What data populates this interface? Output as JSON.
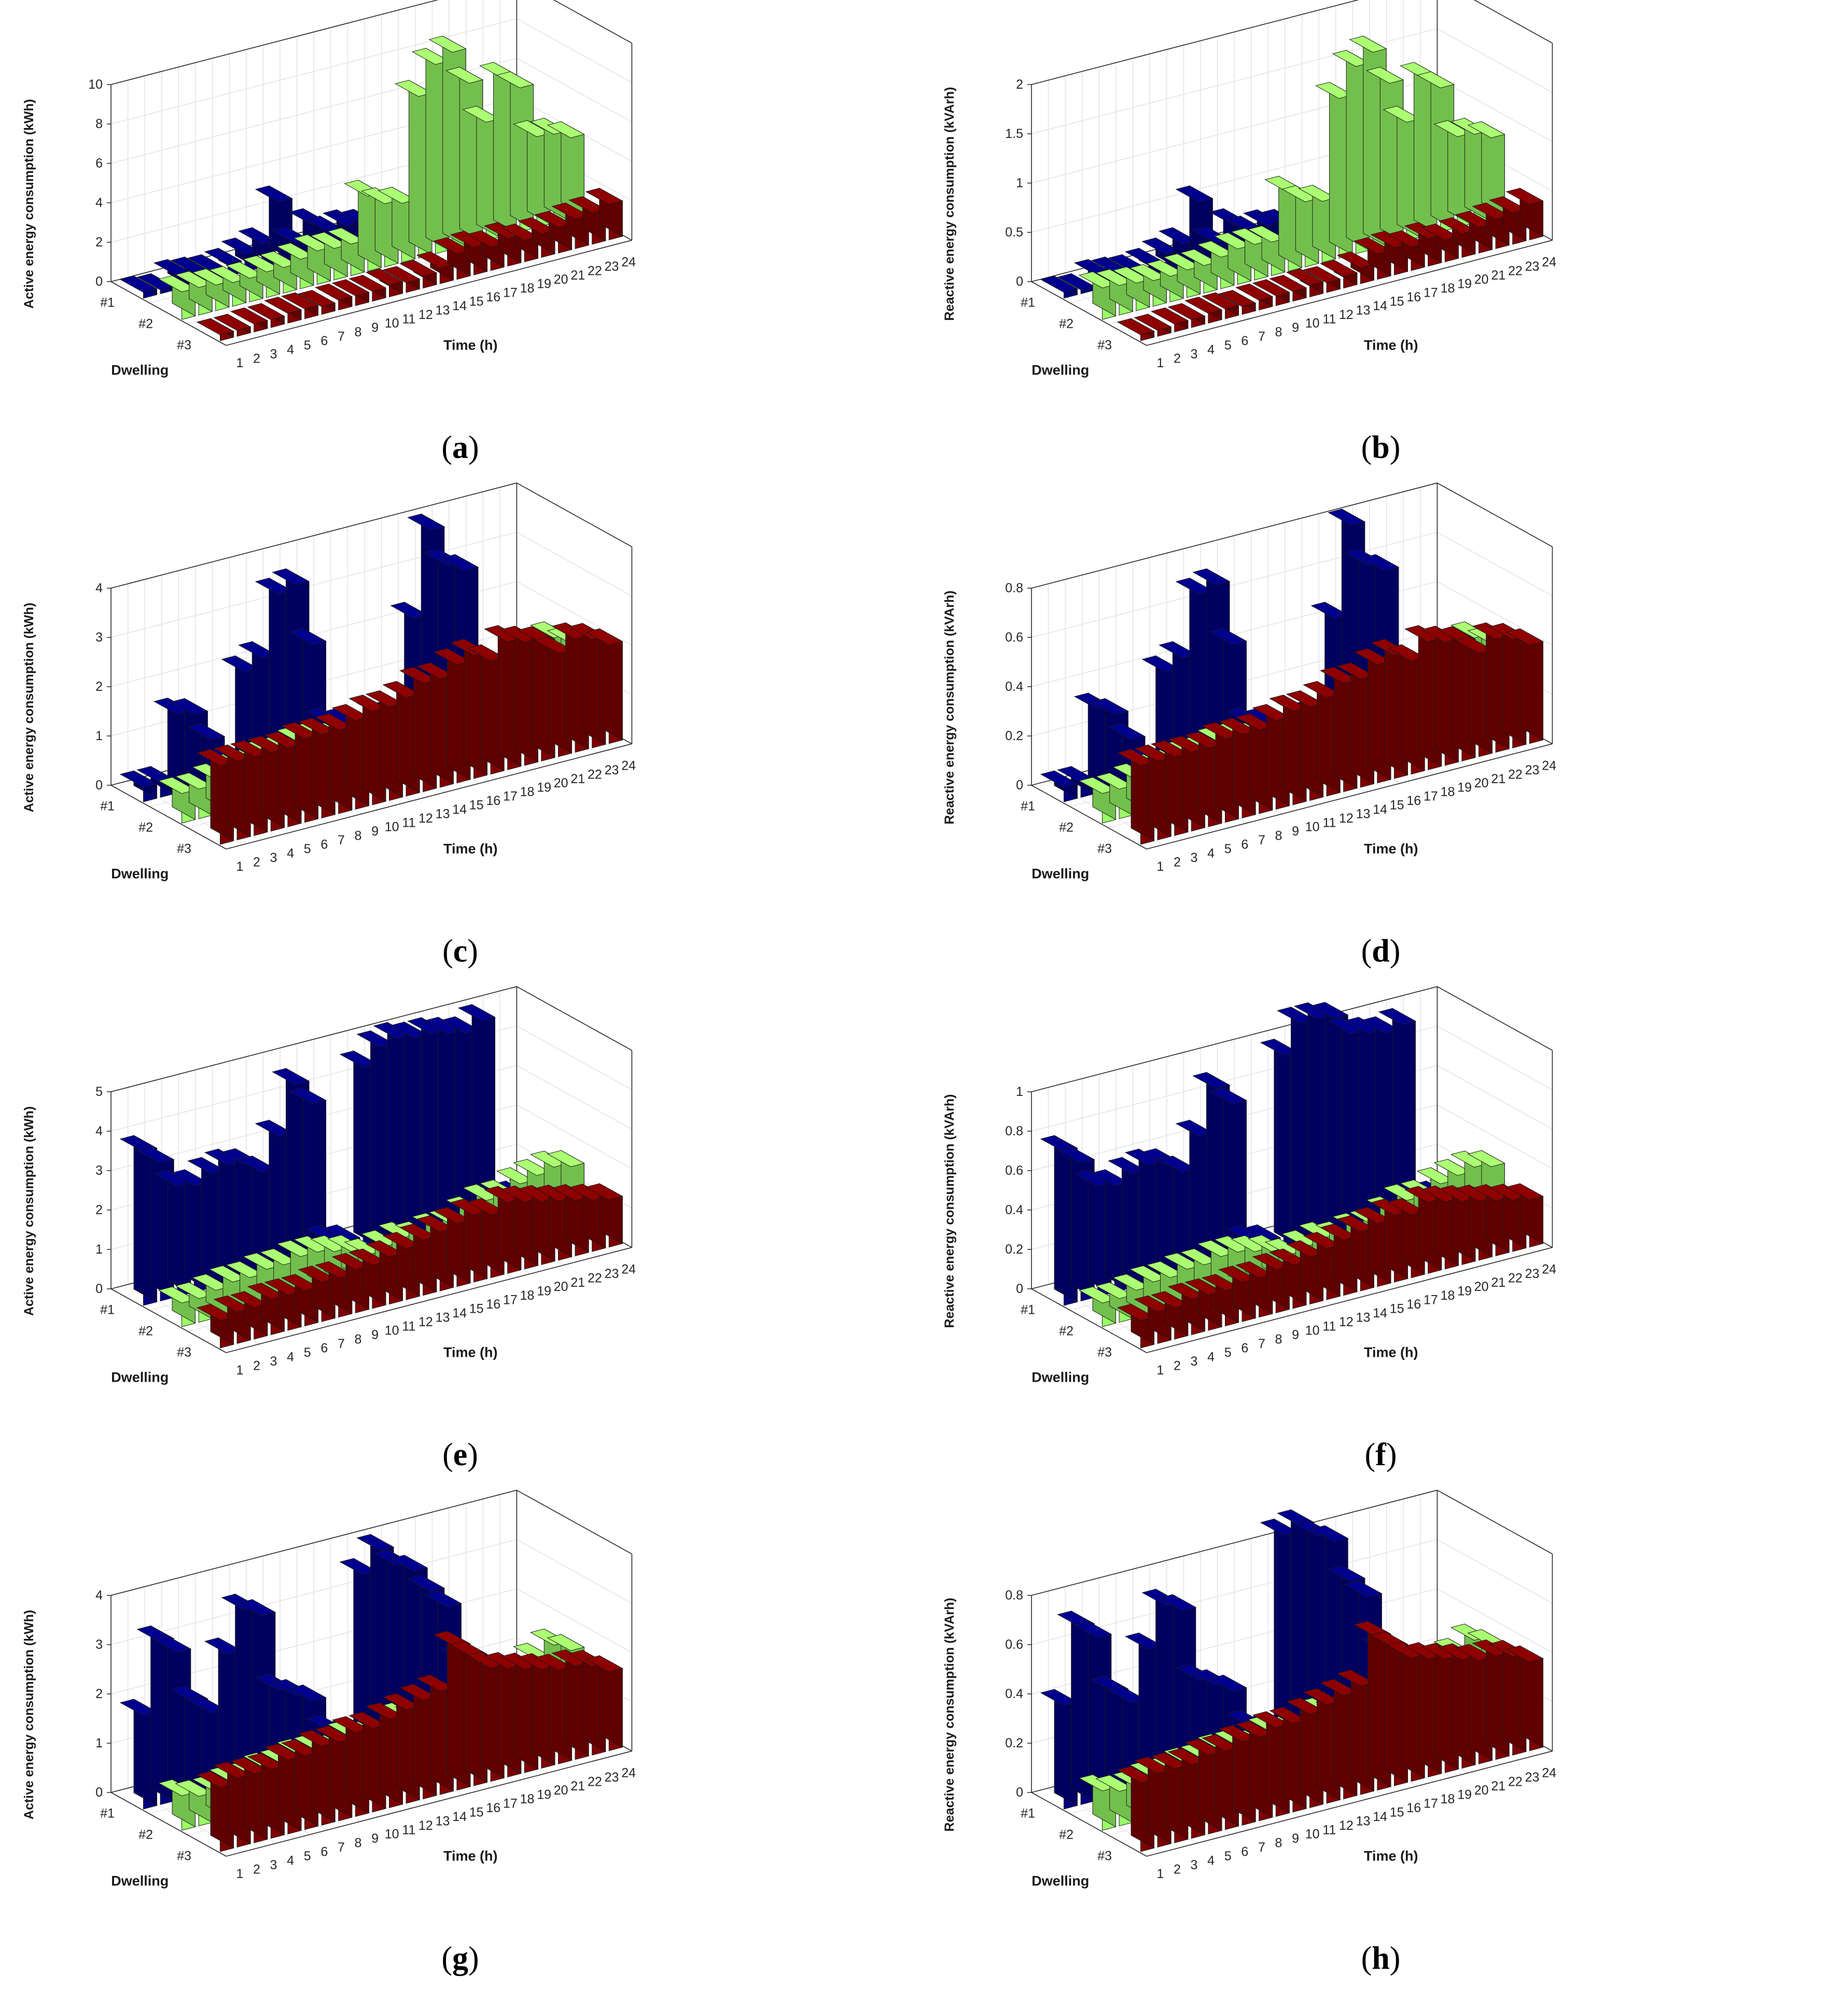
{
  "figure": {
    "colors": {
      "dwelling1": "#000080",
      "dwelling2": "#99FF66",
      "dwelling3": "#800000",
      "edge": "#1a1a1a"
    },
    "common": {
      "xlabel": "Time (h)",
      "ylabel": "Dwelling",
      "dwellings": [
        "#1",
        "#2",
        "#3"
      ],
      "hours": [
        "1",
        "2",
        "3",
        "4",
        "5",
        "6",
        "7",
        "8",
        "9",
        "10",
        "11",
        "12",
        "13",
        "14",
        "15",
        "16",
        "17",
        "18",
        "19",
        "20",
        "21",
        "22",
        "23",
        "24"
      ]
    }
  },
  "chart_data": [
    {
      "id": "a",
      "caption": "a",
      "type": "bar3",
      "zlabel": "Active energy consumption (kWh)",
      "zlim": [
        0,
        10
      ],
      "zticks": [
        "0",
        "2",
        "4",
        "6",
        "8",
        "10"
      ],
      "zstep": 2,
      "series": [
        {
          "name": "#1",
          "values": [
            0.3,
            0.2,
            0.7,
            0.6,
            0.5,
            0.6,
            0.9,
            1.2,
            3.1,
            0.8,
            1.5,
            0.9,
            1.0,
            0.8,
            0.5,
            0.5,
            0.6,
            0.7,
            0.5,
            0.4,
            0.5,
            0.4,
            0.3,
            0.3
          ]
        },
        {
          "name": "#2",
          "values": [
            1.4,
            1.4,
            1.3,
            1.2,
            1.2,
            1.3,
            1.3,
            1.5,
            1.7,
            1.6,
            1.6,
            3.8,
            3.2,
            3.0,
            8.2,
            9.6,
            10.0,
            8.2,
            6.0,
            8.0,
            7.3,
            4.6,
            4.5,
            4.1
          ]
        },
        {
          "name": "#3",
          "values": [
            0.3,
            0.3,
            0.4,
            0.4,
            0.5,
            0.5,
            0.4,
            0.5,
            0.5,
            0.5,
            0.6,
            0.5,
            0.6,
            0.8,
            1.3,
            1.4,
            1.2,
            1.4,
            1.1,
            1.2,
            1.3,
            1.5,
            1.6,
            1.8
          ]
        }
      ]
    },
    {
      "id": "b",
      "caption": "b",
      "type": "bar3",
      "zlabel": "Reactive energy consumption (kVArh)",
      "zlim": [
        0,
        2
      ],
      "zticks": [
        "0",
        "0.5",
        "1",
        "1.5",
        "2"
      ],
      "zstep": 0.5,
      "series": [
        {
          "name": "#1",
          "values": [
            0.06,
            0.04,
            0.14,
            0.12,
            0.1,
            0.12,
            0.18,
            0.24,
            0.62,
            0.16,
            0.3,
            0.18,
            0.2,
            0.16,
            0.1,
            0.1,
            0.12,
            0.14,
            0.1,
            0.08,
            0.1,
            0.08,
            0.06,
            0.06
          ]
        },
        {
          "name": "#2",
          "values": [
            0.32,
            0.3,
            0.28,
            0.26,
            0.26,
            0.28,
            0.28,
            0.32,
            0.36,
            0.36,
            0.34,
            0.8,
            0.66,
            0.62,
            1.62,
            1.9,
            2.0,
            1.64,
            1.2,
            1.6,
            1.46,
            0.92,
            0.9,
            0.82
          ]
        },
        {
          "name": "#3",
          "values": [
            0.06,
            0.06,
            0.08,
            0.08,
            0.1,
            0.1,
            0.08,
            0.1,
            0.1,
            0.1,
            0.12,
            0.1,
            0.12,
            0.16,
            0.26,
            0.28,
            0.24,
            0.28,
            0.22,
            0.24,
            0.26,
            0.3,
            0.32,
            0.36
          ]
        }
      ]
    },
    {
      "id": "c",
      "caption": "c",
      "type": "bar3",
      "zlabel": "Active energy consumption (kWh)",
      "zlim": [
        0,
        4
      ],
      "zticks": [
        "0",
        "1",
        "2",
        "3",
        "4"
      ],
      "zstep": 1,
      "series": [
        {
          "name": "#1",
          "values": [
            0.3,
            0.3,
            1.6,
            1.5,
            0.9,
            0.3,
            2.1,
            2.3,
            3.5,
            3.6,
            2.3,
            0.6,
            0.5,
            0.4,
            0.5,
            0.4,
            2.3,
            4.0,
            3.2,
            3.0,
            0.3,
            0.3,
            0.3,
            0.3
          ]
        },
        {
          "name": "#2",
          "values": [
            0.6,
            0.6,
            0.7,
            0.8,
            0.8,
            0.9,
            0.9,
            1.0,
            1.0,
            0.9,
            0.8,
            0.6,
            0.7,
            0.8,
            0.7,
            0.8,
            0.8,
            1.0,
            1.2,
            1.2,
            1.4,
            1.5,
            1.8,
            1.6
          ]
        },
        {
          "name": "#3",
          "values": [
            1.6,
            1.6,
            1.6,
            1.6,
            1.6,
            1.7,
            1.7,
            1.7,
            1.8,
            1.9,
            1.9,
            2.0,
            2.2,
            2.2,
            2.4,
            2.5,
            2.3,
            2.6,
            2.5,
            2.4,
            2.1,
            2.3,
            2.2,
            2.0
          ]
        }
      ]
    },
    {
      "id": "d",
      "caption": "d",
      "type": "bar3",
      "zlabel": "Reactive energy consumption (kVArh)",
      "zlim": [
        0,
        0.8
      ],
      "zticks": [
        "0",
        "0.2",
        "0.4",
        "0.6",
        "0.8"
      ],
      "zstep": 0.2,
      "series": [
        {
          "name": "#1",
          "values": [
            0.06,
            0.06,
            0.34,
            0.3,
            0.18,
            0.06,
            0.42,
            0.46,
            0.7,
            0.72,
            0.46,
            0.12,
            0.1,
            0.08,
            0.1,
            0.08,
            0.46,
            0.82,
            0.64,
            0.6,
            0.06,
            0.06,
            0.06,
            0.06
          ]
        },
        {
          "name": "#2",
          "values": [
            0.12,
            0.12,
            0.14,
            0.16,
            0.16,
            0.18,
            0.18,
            0.2,
            0.2,
            0.18,
            0.16,
            0.12,
            0.14,
            0.16,
            0.14,
            0.16,
            0.16,
            0.2,
            0.24,
            0.24,
            0.28,
            0.3,
            0.36,
            0.32
          ]
        },
        {
          "name": "#3",
          "values": [
            0.32,
            0.32,
            0.32,
            0.32,
            0.32,
            0.34,
            0.34,
            0.34,
            0.36,
            0.38,
            0.38,
            0.4,
            0.44,
            0.44,
            0.48,
            0.5,
            0.46,
            0.52,
            0.5,
            0.48,
            0.42,
            0.46,
            0.44,
            0.4
          ]
        }
      ]
    },
    {
      "id": "e",
      "caption": "e",
      "type": "bar3",
      "zlabel": "Active energy consumption (kWh)",
      "zlim": [
        0,
        5
      ],
      "zticks": [
        "0",
        "1",
        "2",
        "3",
        "4",
        "5"
      ],
      "zstep": 1,
      "series": [
        {
          "name": "#1",
          "values": [
            3.9,
            3.5,
            2.8,
            2.7,
            2.9,
            3.0,
            2.9,
            2.6,
            3.4,
            4.6,
            4.0,
            0.4,
            0.3,
            4.6,
            5.0,
            5.1,
            5.0,
            5.0,
            4.9,
            4.8,
            5.0,
            0.3,
            0.3,
            0.3
          ]
        },
        {
          "name": "#2",
          "values": [
            0.6,
            0.6,
            0.7,
            0.8,
            0.8,
            0.9,
            0.9,
            1.0,
            1.0,
            0.9,
            0.8,
            0.6,
            0.7,
            0.8,
            0.7,
            0.8,
            0.8,
            1.0,
            1.2,
            1.2,
            1.4,
            1.5,
            1.6,
            1.5
          ]
        },
        {
          "name": "#3",
          "values": [
            0.7,
            0.8,
            0.8,
            0.9,
            0.9,
            0.9,
            1.0,
            1.0,
            1.1,
            1.1,
            1.2,
            1.3,
            1.4,
            1.5,
            1.6,
            1.7,
            1.6,
            1.8,
            1.7,
            1.6,
            1.5,
            1.4,
            1.3,
            1.2
          ]
        }
      ]
    },
    {
      "id": "f",
      "caption": "f",
      "type": "bar3",
      "zlabel": "Reactive energy consumption (kVArh)",
      "zlim": [
        0,
        1
      ],
      "zticks": [
        "0",
        "0.2",
        "0.4",
        "0.6",
        "0.8",
        "1"
      ],
      "zstep": 0.2,
      "series": [
        {
          "name": "#1",
          "values": [
            0.78,
            0.7,
            0.56,
            0.54,
            0.58,
            0.6,
            0.58,
            0.52,
            0.68,
            0.9,
            0.8,
            0.08,
            0.06,
            0.98,
            1.12,
            1.12,
            1.1,
            1.0,
            0.98,
            0.96,
            0.98,
            0.06,
            0.06,
            0.06
          ]
        },
        {
          "name": "#2",
          "values": [
            0.12,
            0.12,
            0.14,
            0.16,
            0.16,
            0.18,
            0.18,
            0.2,
            0.2,
            0.18,
            0.16,
            0.12,
            0.14,
            0.16,
            0.14,
            0.16,
            0.16,
            0.2,
            0.24,
            0.24,
            0.28,
            0.3,
            0.32,
            0.3
          ]
        },
        {
          "name": "#3",
          "values": [
            0.14,
            0.16,
            0.16,
            0.18,
            0.18,
            0.18,
            0.2,
            0.2,
            0.22,
            0.22,
            0.24,
            0.26,
            0.28,
            0.3,
            0.32,
            0.34,
            0.32,
            0.36,
            0.34,
            0.32,
            0.3,
            0.28,
            0.26,
            0.24
          ]
        }
      ]
    },
    {
      "id": "g",
      "caption": "g",
      "type": "bar3",
      "zlabel": "Active energy consumption (kWh)",
      "zlim": [
        0,
        4
      ],
      "zticks": [
        "0",
        "1",
        "2",
        "3",
        "4"
      ],
      "zstep": 1,
      "series": [
        {
          "name": "#1",
          "values": [
            1.9,
            3.3,
            3.0,
            1.9,
            1.6,
            2.7,
            3.5,
            3.3,
            1.7,
            1.5,
            1.3,
            0.6,
            0.4,
            3.6,
            4.0,
            3.6,
            3.4,
            2.9,
            2.5,
            1.3,
            0.5,
            0.3,
            0.3,
            0.3
          ]
        },
        {
          "name": "#2",
          "values": [
            0.7,
            0.6,
            0.6,
            0.7,
            0.7,
            0.8,
            0.8,
            0.9,
            0.9,
            0.8,
            1.0,
            0.9,
            0.8,
            1.1,
            1.0,
            1.0,
            1.1,
            1.3,
            1.6,
            1.5,
            1.4,
            1.6,
            1.8,
            1.6
          ]
        },
        {
          "name": "#3",
          "values": [
            1.3,
            1.4,
            1.4,
            1.4,
            1.5,
            1.5,
            1.6,
            1.6,
            1.7,
            1.7,
            1.8,
            1.9,
            2.0,
            2.1,
            2.9,
            2.6,
            2.3,
            2.2,
            2.1,
            2.0,
            1.9,
            1.9,
            1.8,
            1.6
          ]
        }
      ]
    },
    {
      "id": "h",
      "caption": "h",
      "type": "bar3",
      "zlabel": "Reactive energy consumption (kVArh)",
      "zlim": [
        0,
        0.8
      ],
      "zticks": [
        "0",
        "0.2",
        "0.4",
        "0.6",
        "0.8"
      ],
      "zstep": 0.2,
      "series": [
        {
          "name": "#1",
          "values": [
            0.42,
            0.72,
            0.66,
            0.42,
            0.36,
            0.56,
            0.72,
            0.68,
            0.38,
            0.34,
            0.3,
            0.14,
            0.1,
            0.88,
            0.9,
            0.84,
            0.8,
            0.62,
            0.54,
            0.3,
            0.12,
            0.06,
            0.06,
            0.06
          ]
        },
        {
          "name": "#2",
          "values": [
            0.16,
            0.14,
            0.14,
            0.16,
            0.16,
            0.18,
            0.18,
            0.2,
            0.2,
            0.18,
            0.22,
            0.2,
            0.18,
            0.24,
            0.22,
            0.22,
            0.24,
            0.28,
            0.34,
            0.32,
            0.3,
            0.34,
            0.38,
            0.34
          ]
        },
        {
          "name": "#3",
          "values": [
            0.28,
            0.3,
            0.3,
            0.3,
            0.32,
            0.32,
            0.34,
            0.34,
            0.36,
            0.36,
            0.38,
            0.4,
            0.42,
            0.44,
            0.62,
            0.56,
            0.5,
            0.48,
            0.46,
            0.44,
            0.42,
            0.42,
            0.4,
            0.36
          ]
        }
      ]
    }
  ]
}
